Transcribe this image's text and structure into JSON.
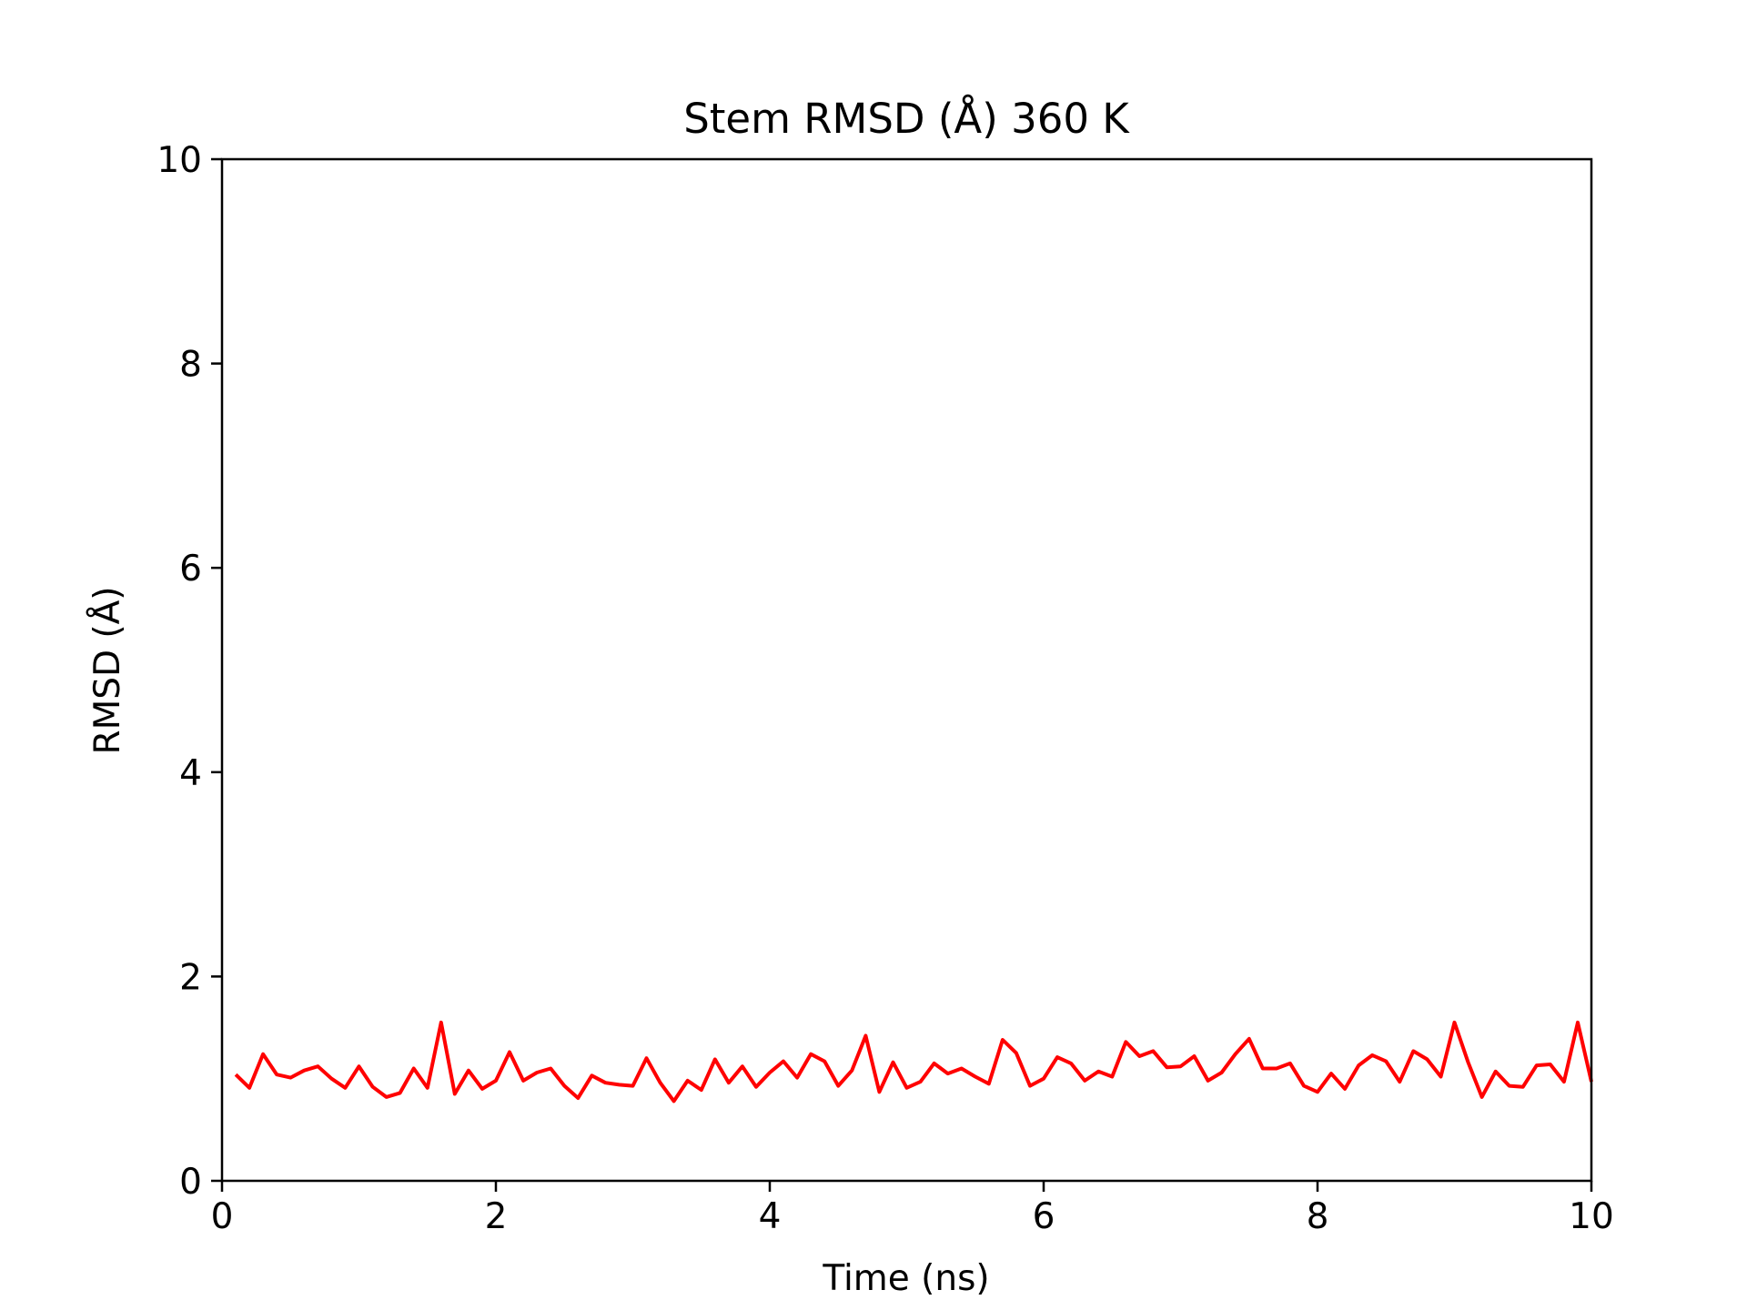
{
  "chart_data": {
    "type": "line",
    "title": "Stem RMSD (Å) 360 K",
    "xlabel": "Time (ns)",
    "ylabel": "RMSD (Å)",
    "xlim": [
      0,
      10
    ],
    "ylim": [
      0,
      10
    ],
    "xticks": [
      0,
      2,
      4,
      6,
      8,
      10
    ],
    "yticks": [
      0,
      2,
      4,
      6,
      8,
      10
    ],
    "xtick_labels": [
      "0",
      "2",
      "4",
      "6",
      "8",
      "10"
    ],
    "ytick_labels": [
      "0",
      "2",
      "4",
      "6",
      "8",
      "10"
    ],
    "grid": false,
    "legend": "none",
    "series": [
      {
        "color": "#ff0000",
        "x": [
          0.1,
          0.2,
          0.3,
          0.4,
          0.5,
          0.6,
          0.7,
          0.8,
          0.9,
          1.0,
          1.1,
          1.2,
          1.3,
          1.4,
          1.5,
          1.6,
          1.7,
          1.8,
          1.9,
          2.0,
          2.1,
          2.2,
          2.3,
          2.4,
          2.5,
          2.6,
          2.7,
          2.8,
          2.9,
          3.0,
          3.1,
          3.2,
          3.3,
          3.4,
          3.5,
          3.6,
          3.7,
          3.8,
          3.9,
          4.0,
          4.1,
          4.2,
          4.3,
          4.4,
          4.5,
          4.6,
          4.7,
          4.8,
          4.9,
          5.0,
          5.1,
          5.2,
          5.3,
          5.4,
          5.5,
          5.6,
          5.7,
          5.8,
          5.9,
          6.0,
          6.1,
          6.2,
          6.3,
          6.4,
          6.5,
          6.6,
          6.7,
          6.8,
          6.9,
          7.0,
          7.1,
          7.2,
          7.3,
          7.4,
          7.5,
          7.6,
          7.7,
          7.8,
          7.9,
          8.0,
          8.1,
          8.2,
          8.3,
          8.4,
          8.5,
          8.6,
          8.7,
          8.8,
          8.9,
          9.0,
          9.1,
          9.2,
          9.3,
          9.4,
          9.5,
          9.6,
          9.7,
          9.8,
          9.9,
          10.0
        ],
        "y": [
          1.04,
          0.91,
          1.24,
          1.04,
          1.01,
          1.08,
          1.12,
          1.0,
          0.91,
          1.12,
          0.92,
          0.82,
          0.86,
          1.1,
          0.91,
          1.55,
          0.85,
          1.08,
          0.9,
          0.98,
          1.26,
          0.98,
          1.06,
          1.1,
          0.93,
          0.81,
          1.03,
          0.96,
          0.94,
          0.93,
          1.2,
          0.96,
          0.78,
          0.98,
          0.89,
          1.19,
          0.96,
          1.12,
          0.92,
          1.06,
          1.17,
          1.01,
          1.24,
          1.17,
          0.93,
          1.08,
          1.42,
          0.87,
          1.16,
          0.91,
          0.97,
          1.15,
          1.05,
          1.1,
          1.02,
          0.95,
          1.38,
          1.25,
          0.93,
          1.0,
          1.21,
          1.15,
          0.98,
          1.07,
          1.02,
          1.36,
          1.22,
          1.27,
          1.11,
          1.12,
          1.22,
          0.98,
          1.06,
          1.24,
          1.39,
          1.1,
          1.1,
          1.15,
          0.93,
          0.87,
          1.05,
          0.9,
          1.13,
          1.23,
          1.17,
          0.97,
          1.27,
          1.19,
          1.02,
          1.55,
          1.16,
          0.82,
          1.07,
          0.93,
          0.92,
          1.13,
          1.14,
          0.97,
          1.55,
          0.97
        ]
      }
    ]
  }
}
